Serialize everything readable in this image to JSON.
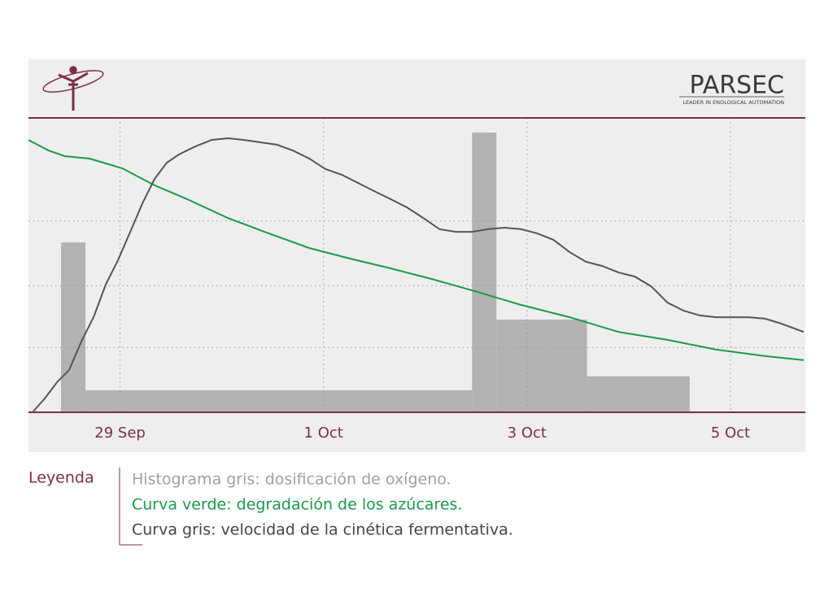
{
  "brand": {
    "name": "PARSEC",
    "tagline": "LEADER IN ENOLOGICAL AUTOMATION"
  },
  "chart_data": {
    "type": "combo",
    "legend_title": "Leyenda",
    "xlim": [
      28.1,
      35.72
    ],
    "xticks": [
      {
        "value": 29,
        "label": "29 Sep"
      },
      {
        "value": 31,
        "label": "1 Oct"
      },
      {
        "value": 33,
        "label": "3 Oct"
      },
      {
        "value": 35,
        "label": "5 Oct"
      }
    ],
    "ylim": [
      0,
      100
    ],
    "yticks": [
      22,
      43,
      65
    ],
    "grid": true,
    "series": [
      {
        "type": "histogram",
        "name": "Histograma gris: dosificación de oxígeno.",
        "color": "#b3b3b3",
        "text_color": "#a0a0a0",
        "bins": [
          28.42,
          28.66,
          32.46,
          32.7,
          33.59,
          34.6
        ],
        "values": [
          57.7,
          7.5,
          95.0,
          31.5,
          12.2
        ]
      },
      {
        "type": "line",
        "name": "Curva verde: degradación de los azúcares.",
        "color": "#1a9a4a",
        "text_color": "#1a9a4a",
        "x": [
          28.1,
          28.3,
          28.46,
          28.7,
          29.02,
          29.34,
          29.66,
          30.06,
          30.46,
          30.86,
          31.26,
          31.66,
          32.06,
          32.46,
          32.94,
          33.42,
          33.9,
          34.38,
          34.86,
          35.34,
          35.72
        ],
        "values": [
          92.5,
          88.9,
          87.0,
          86.2,
          82.9,
          77.1,
          72.4,
          66.0,
          60.8,
          55.8,
          52.2,
          48.9,
          45.3,
          41.4,
          36.5,
          32.3,
          27.3,
          24.6,
          21.3,
          19.1,
          17.7
        ]
      },
      {
        "type": "line",
        "name": "Curva gris: velocidad de la cinética fermentativa.",
        "color": "#555555",
        "text_color": "#444444",
        "x": [
          28.14,
          28.26,
          28.38,
          28.5,
          28.62,
          28.74,
          28.86,
          28.98,
          29.1,
          29.22,
          29.34,
          29.46,
          29.58,
          29.74,
          29.9,
          30.06,
          30.22,
          30.38,
          30.54,
          30.7,
          30.86,
          31.02,
          31.18,
          31.34,
          31.5,
          31.66,
          31.82,
          31.98,
          32.14,
          32.3,
          32.46,
          32.62,
          32.78,
          32.94,
          33.1,
          33.26,
          33.42,
          33.58,
          33.74,
          33.9,
          34.06,
          34.22,
          34.38,
          34.54,
          34.7,
          34.86,
          35.02,
          35.18,
          35.34,
          35.5,
          35.72
        ],
        "values": [
          0,
          4.7,
          10.2,
          14.4,
          24.0,
          32.3,
          43.4,
          51.7,
          61.3,
          71.0,
          79.3,
          84.8,
          87.6,
          90.3,
          92.5,
          93.1,
          92.5,
          91.7,
          90.9,
          88.9,
          86.2,
          82.6,
          80.7,
          77.9,
          75.1,
          72.4,
          69.6,
          66.0,
          62.2,
          61.3,
          61.3,
          62.2,
          62.7,
          62.2,
          60.8,
          58.6,
          54.4,
          51.1,
          49.7,
          47.5,
          46.1,
          42.8,
          37.3,
          34.5,
          32.9,
          32.3,
          32.3,
          32.3,
          31.8,
          30.1,
          27.3
        ]
      }
    ]
  }
}
